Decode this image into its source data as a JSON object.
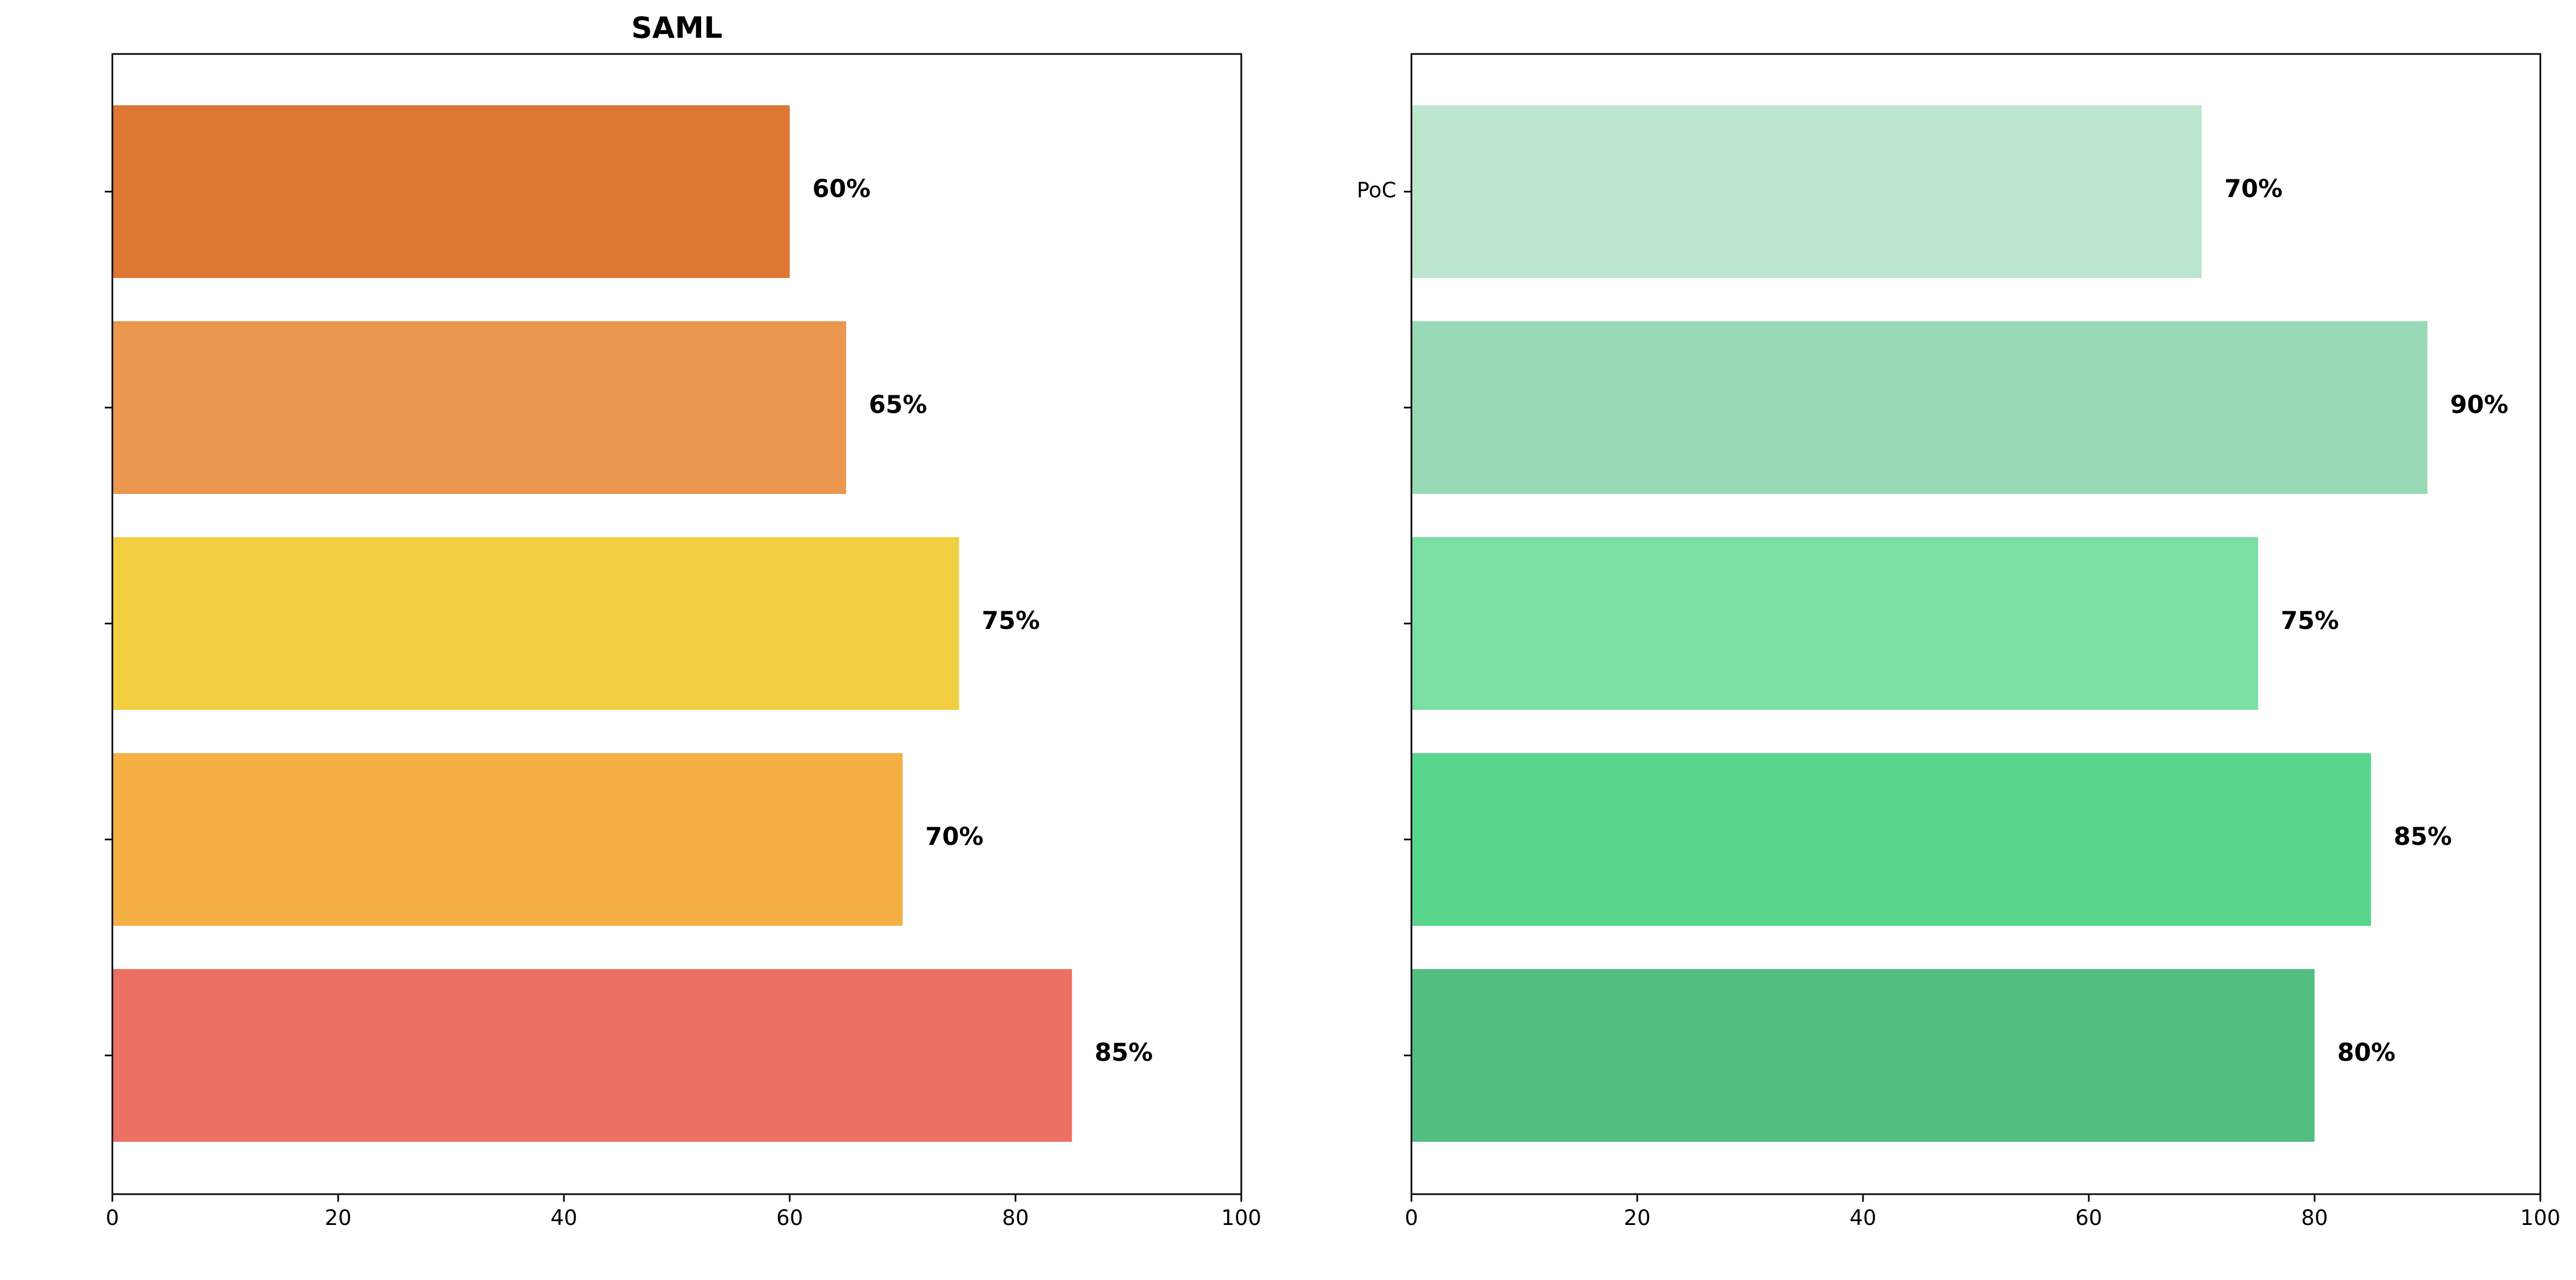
{
  "chart_data": [
    {
      "type": "bar",
      "orientation": "horizontal",
      "title": "SAML",
      "xlabel": "",
      "ylabel": "",
      "xlim": [
        0,
        100
      ],
      "xticks": [
        0,
        20,
        40,
        60,
        80,
        100
      ],
      "grid": false,
      "categories": [
        "",
        "",
        "",
        "",
        ""
      ],
      "values": [
        60,
        65,
        75,
        70,
        85
      ],
      "value_labels": [
        "60%",
        "65%",
        "75%",
        "70%",
        "85%"
      ],
      "colors": [
        "#dd7733",
        "#eb9750",
        "#f2cf40",
        "#f5b043",
        "#ec7064"
      ]
    },
    {
      "type": "bar",
      "orientation": "horizontal",
      "title": "",
      "xlabel": "",
      "ylabel": "",
      "xlim": [
        0,
        100
      ],
      "xticks": [
        0,
        20,
        40,
        60,
        80,
        100
      ],
      "grid": false,
      "categories": [
        "PoC",
        "",
        "",
        "",
        ""
      ],
      "values": [
        70,
        90,
        75,
        85,
        80
      ],
      "value_labels": [
        "70%",
        "90%",
        "75%",
        "85%",
        "80%"
      ],
      "colors": [
        "#bce6cd",
        "#98d9b5",
        "#7adfa3",
        "#58d68d",
        "#52be80"
      ]
    }
  ]
}
